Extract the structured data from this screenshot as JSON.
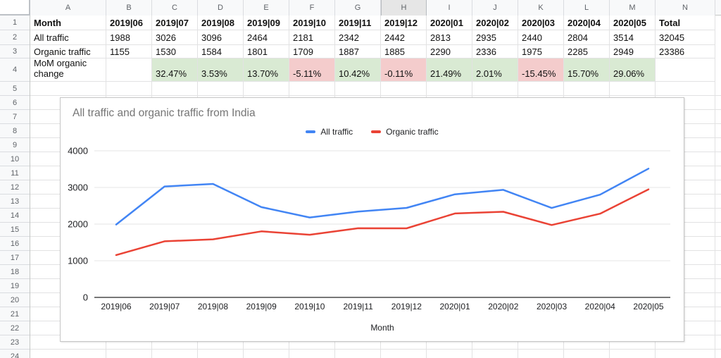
{
  "sheet": {
    "selected_column": "H",
    "column_letters": [
      "A",
      "B",
      "C",
      "D",
      "E",
      "F",
      "G",
      "H",
      "I",
      "J",
      "K",
      "L",
      "M",
      "N"
    ],
    "visible_row_count": 24,
    "table": {
      "header_row": {
        "label": "Month",
        "values": [
          "2019|06",
          "2019|07",
          "2019|08",
          "2019|09",
          "2019|10",
          "2019|11",
          "2019|12",
          "2020|01",
          "2020|02",
          "2020|03",
          "2020|04",
          "2020|05",
          "Total"
        ]
      },
      "data_rows": [
        {
          "label": "All traffic",
          "values": [
            "1988",
            "3026",
            "3096",
            "2464",
            "2181",
            "2342",
            "2442",
            "2813",
            "2935",
            "2440",
            "2804",
            "3514",
            "32045"
          ]
        },
        {
          "label": "Organic traffic",
          "values": [
            "1155",
            "1530",
            "1584",
            "1801",
            "1709",
            "1887",
            "1885",
            "2290",
            "2336",
            "1975",
            "2285",
            "2949",
            "23386"
          ]
        },
        {
          "label": "MoM organic change",
          "values": [
            "",
            "32.47%",
            "3.53%",
            "13.70%",
            "-5.11%",
            "10.42%",
            "-0.11%",
            "21.49%",
            "2.01%",
            "-15.45%",
            "15.70%",
            "29.06%",
            ""
          ],
          "conditional_fill": true
        }
      ]
    },
    "colors": {
      "positive_fill": "#d9ead3",
      "negative_fill": "#f4cccc"
    }
  },
  "chart_data": {
    "type": "line",
    "title": "All traffic and organic traffic from India",
    "xlabel": "Month",
    "ylabel": "",
    "x": [
      "2019|06",
      "2019|07",
      "2019|08",
      "2019|09",
      "2019|10",
      "2019|11",
      "2019|12",
      "2020|01",
      "2020|02",
      "2020|03",
      "2020|04",
      "2020|05"
    ],
    "series": [
      {
        "name": "All traffic",
        "color": "#4285f4",
        "values": [
          1988,
          3026,
          3096,
          2464,
          2181,
          2342,
          2442,
          2813,
          2935,
          2440,
          2804,
          3514
        ]
      },
      {
        "name": "Organic traffic",
        "color": "#ea4335",
        "values": [
          1155,
          1530,
          1584,
          1801,
          1709,
          1887,
          1885,
          2290,
          2336,
          1975,
          2285,
          2949
        ]
      }
    ],
    "ylim": [
      0,
      4000
    ],
    "yticks": [
      0,
      1000,
      2000,
      3000,
      4000
    ],
    "grid": true,
    "legend_position": "top-center",
    "axis_color": "#4a4a4a",
    "gridline_color": "#e6e6e6",
    "tick_label_color": "#202124"
  }
}
